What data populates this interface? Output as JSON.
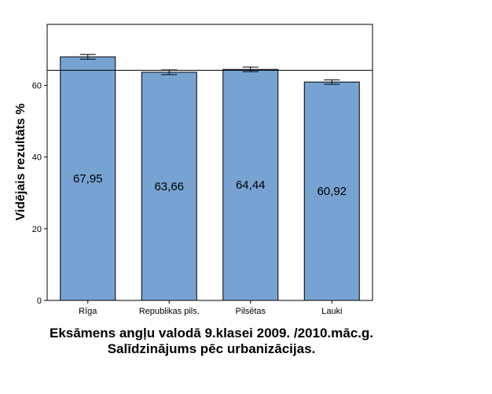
{
  "chart_data": {
    "type": "bar",
    "categories": [
      "Rīga",
      "Republikas pils.",
      "Pilsētas",
      "Lauki"
    ],
    "values": [
      67.95,
      63.66,
      64.44,
      60.92
    ],
    "value_labels": [
      "67,95",
      "63,66",
      "64,44",
      "60,92"
    ],
    "error_bars": [
      {
        "low": 67.3,
        "high": 68.6
      },
      {
        "low": 63.0,
        "high": 64.3
      },
      {
        "low": 63.8,
        "high": 65.1
      },
      {
        "low": 60.3,
        "high": 61.5
      }
    ],
    "reference_line": 64.2,
    "ylim": [
      0,
      77
    ],
    "yticks": [
      0,
      20,
      40,
      60
    ],
    "ylabel": "Vidējais rezultāts %",
    "title": "Eksāmens angļu valodā 9.klasei 2009. /2010.māc.g. Salīdzinājums pēc urbanizācijas.",
    "bar_color": "#77a3d3",
    "grid": false
  }
}
